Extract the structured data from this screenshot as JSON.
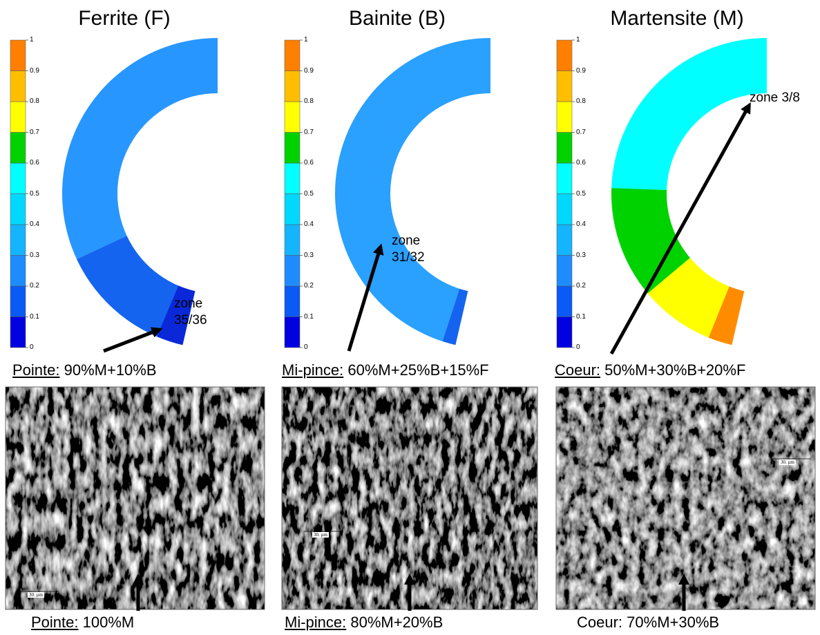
{
  "colorbar_ticks": [
    "0",
    "0.1",
    "0.2",
    "0.3",
    "0.4",
    "0.5",
    "0.6",
    "0.7",
    "0.8",
    "0.9",
    "1"
  ],
  "panels": [
    {
      "title": "Ferrite (F)",
      "zone_label": "zone 35/36",
      "caption": {
        "label": "Pointe:",
        "text": "90%M+10%B",
        "underlined": true
      },
      "micrograph": {
        "scale_label": "30. µm",
        "caption": {
          "label": "Pointe:",
          "text": "100%M",
          "underlined": true
        }
      }
    },
    {
      "title": "Bainite (B)",
      "zone_label": "zone 31/32",
      "caption": {
        "label": "Mi-pince:",
        "text": "60%M+25%B+15%F",
        "underlined": true
      },
      "micrograph": {
        "scale_label": "30. µm",
        "caption": {
          "label": "Mi-pince:",
          "text": "80%M+20%B",
          "underlined": true
        }
      }
    },
    {
      "title": "Martensite (M)",
      "zone_label": "zone 3/8",
      "caption": {
        "label": "Coeur:",
        "text": "50%M+30%B+20%F",
        "underlined": true
      },
      "micrograph": {
        "scale_label": "30. µm",
        "caption": {
          "label": "Coeur:",
          "text": "70%M+30%B",
          "underlined": false
        }
      }
    }
  ]
}
